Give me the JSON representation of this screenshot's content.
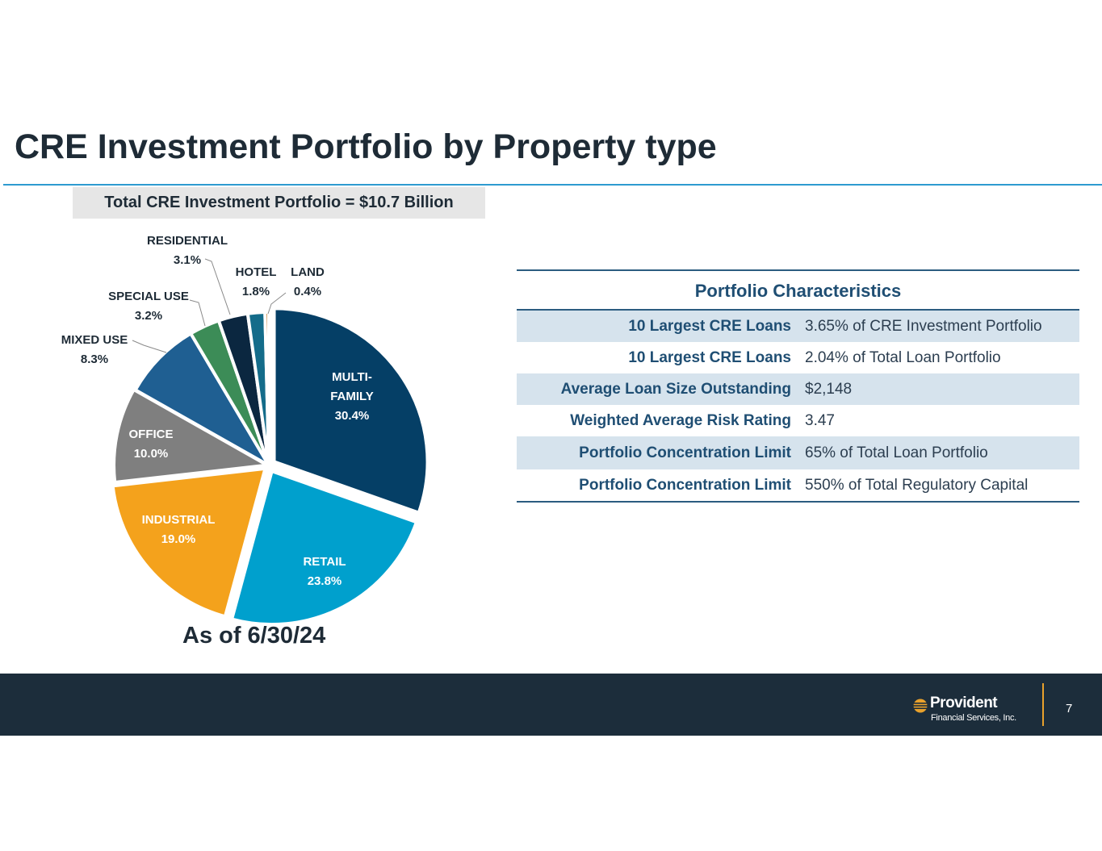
{
  "header": {
    "title": "CRE Investment Portfolio by Property type",
    "total_label": "Total CRE Investment Portfolio = $10.7 Billion"
  },
  "chart_data": {
    "type": "pie",
    "title": "Total CRE Investment Portfolio = $10.7 Billion",
    "slices": [
      {
        "name": "MULTI-FAMILY",
        "lines": [
          "MULTI-",
          "FAMILY"
        ],
        "value": 30.4,
        "label": "30.4%",
        "color": "#053f66",
        "text_color": "#ffffff"
      },
      {
        "name": "RETAIL",
        "lines": [
          "RETAIL"
        ],
        "value": 23.8,
        "label": "23.8%",
        "color": "#00a0cd",
        "text_color": "#ffffff"
      },
      {
        "name": "INDUSTRIAL",
        "lines": [
          "INDUSTRIAL"
        ],
        "value": 19.0,
        "label": "19.0%",
        "color": "#f4a21c",
        "text_color": "#ffffff"
      },
      {
        "name": "OFFICE",
        "lines": [
          "OFFICE"
        ],
        "value": 10.0,
        "label": "10.0%",
        "color": "#7f7f7f",
        "text_color": "#ffffff"
      },
      {
        "name": "MIXED USE",
        "lines": [
          "MIXED USE"
        ],
        "value": 8.3,
        "label": "8.3%",
        "color": "#1f5f92",
        "text_color": "#1e2b36"
      },
      {
        "name": "SPECIAL USE",
        "lines": [
          "SPECIAL USE"
        ],
        "value": 3.2,
        "label": "3.2%",
        "color": "#3c8c57",
        "text_color": "#1e2b36"
      },
      {
        "name": "RESIDENTIAL",
        "lines": [
          "RESIDENTIAL"
        ],
        "value": 3.1,
        "label": "3.1%",
        "color": "#0b2740",
        "text_color": "#1e2b36"
      },
      {
        "name": "HOTEL",
        "lines": [
          "HOTEL"
        ],
        "value": 1.8,
        "label": "1.8%",
        "color": "#146c8a",
        "text_color": "#1e2b36"
      },
      {
        "name": "LAND",
        "lines": [
          "LAND"
        ],
        "value": 0.4,
        "label": "0.4%",
        "color": "#c0782a",
        "text_color": "#1e2b36"
      }
    ],
    "caption": "As of 6/30/24"
  },
  "table": {
    "header": "Portfolio Characteristics",
    "rows": [
      {
        "label": "10 Largest CRE Loans",
        "value": "3.65% of CRE Investment Portfolio"
      },
      {
        "label": "10 Largest CRE Loans",
        "value": "2.04% of Total Loan Portfolio"
      },
      {
        "label": "Average Loan Size Outstanding",
        "value": "$2,148"
      },
      {
        "label": "Weighted Average Risk Rating",
        "value": "3.47"
      },
      {
        "label": "Portfolio Concentration Limit",
        "value": "65% of Total Loan Portfolio"
      },
      {
        "label": "Portfolio Concentration Limit",
        "value": "550% of Total Regulatory Capital"
      }
    ]
  },
  "footer": {
    "logo_name": "Provident",
    "logo_sub": "Financial Services, Inc.",
    "page_number": "7",
    "logo_icon": "provident-mark-icon",
    "accent_color": "#e8a12c"
  }
}
